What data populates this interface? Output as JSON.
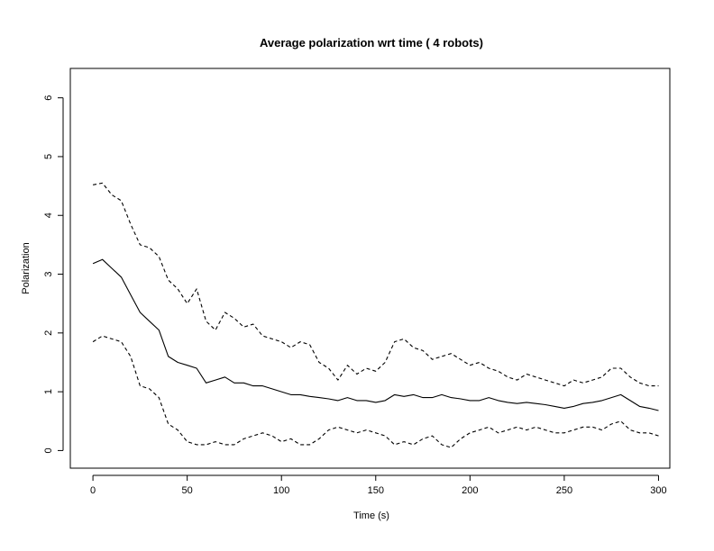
{
  "chart_data": {
    "type": "line",
    "title": "Average polarization wrt time ( 4 robots)",
    "xlabel": "Time (s)",
    "ylabel": "Polarization",
    "xlim": [
      -12,
      306
    ],
    "ylim": [
      -0.3,
      6.5
    ],
    "xticks": [
      0,
      50,
      100,
      150,
      200,
      250,
      300
    ],
    "yticks": [
      0,
      1,
      2,
      3,
      4,
      5,
      6
    ],
    "grid": false,
    "legend": "none",
    "x": [
      0,
      5,
      10,
      15,
      20,
      25,
      30,
      35,
      40,
      45,
      50,
      55,
      60,
      65,
      70,
      75,
      80,
      85,
      90,
      95,
      100,
      105,
      110,
      115,
      120,
      125,
      130,
      135,
      140,
      145,
      150,
      155,
      160,
      165,
      170,
      175,
      180,
      185,
      190,
      195,
      200,
      205,
      210,
      215,
      220,
      225,
      230,
      235,
      240,
      245,
      250,
      255,
      260,
      265,
      270,
      275,
      280,
      285,
      290,
      295,
      300
    ],
    "series": [
      {
        "style": "dashed",
        "values": [
          4.52,
          4.55,
          4.35,
          4.25,
          3.85,
          3.5,
          3.45,
          3.3,
          2.9,
          2.75,
          2.5,
          2.75,
          2.2,
          2.05,
          2.35,
          2.25,
          2.1,
          2.15,
          1.95,
          1.9,
          1.85,
          1.75,
          1.85,
          1.8,
          1.5,
          1.4,
          1.2,
          1.45,
          1.3,
          1.4,
          1.35,
          1.5,
          1.85,
          1.9,
          1.75,
          1.7,
          1.55,
          1.6,
          1.65,
          1.55,
          1.45,
          1.5,
          1.4,
          1.35,
          1.25,
          1.2,
          1.3,
          1.25,
          1.2,
          1.15,
          1.1,
          1.2,
          1.15,
          1.2,
          1.25,
          1.4,
          1.4,
          1.25,
          1.15,
          1.1,
          1.1
        ]
      },
      {
        "style": "solid",
        "values": [
          3.18,
          3.25,
          3.1,
          2.95,
          2.65,
          2.35,
          2.2,
          2.05,
          1.6,
          1.5,
          1.45,
          1.4,
          1.15,
          1.2,
          1.25,
          1.15,
          1.15,
          1.1,
          1.1,
          1.05,
          1.0,
          0.95,
          0.95,
          0.92,
          0.9,
          0.88,
          0.85,
          0.9,
          0.85,
          0.85,
          0.82,
          0.85,
          0.95,
          0.92,
          0.95,
          0.9,
          0.9,
          0.95,
          0.9,
          0.88,
          0.85,
          0.85,
          0.9,
          0.85,
          0.82,
          0.8,
          0.82,
          0.8,
          0.78,
          0.75,
          0.72,
          0.75,
          0.8,
          0.82,
          0.85,
          0.9,
          0.95,
          0.85,
          0.75,
          0.72,
          0.68
        ]
      },
      {
        "style": "dashed",
        "values": [
          1.85,
          1.95,
          1.9,
          1.85,
          1.6,
          1.1,
          1.05,
          0.9,
          0.45,
          0.35,
          0.15,
          0.1,
          0.1,
          0.15,
          0.1,
          0.1,
          0.2,
          0.25,
          0.3,
          0.25,
          0.15,
          0.2,
          0.1,
          0.1,
          0.2,
          0.35,
          0.4,
          0.35,
          0.3,
          0.35,
          0.3,
          0.25,
          0.1,
          0.15,
          0.1,
          0.2,
          0.25,
          0.1,
          0.05,
          0.2,
          0.3,
          0.35,
          0.4,
          0.3,
          0.35,
          0.4,
          0.35,
          0.4,
          0.35,
          0.3,
          0.3,
          0.35,
          0.4,
          0.4,
          0.35,
          0.45,
          0.5,
          0.35,
          0.3,
          0.3,
          0.25
        ]
      }
    ]
  }
}
